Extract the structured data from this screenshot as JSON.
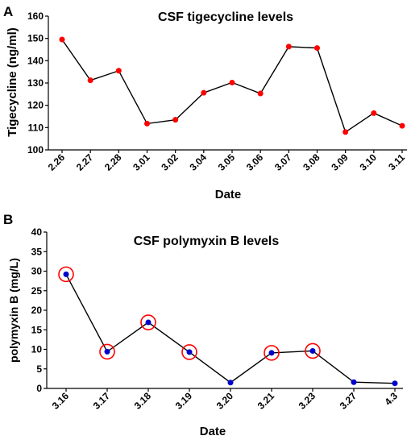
{
  "panels": [
    {
      "letter": "A"
    },
    {
      "letter": "B"
    }
  ],
  "chart_data": [
    {
      "type": "line",
      "title": "CSF tigecycline levels",
      "xlabel": "Date",
      "ylabel": "Tigecycline (ng/ml)",
      "categories": [
        "2.26",
        "2.27",
        "2.28",
        "3.01",
        "3.02",
        "3.04",
        "3.05",
        "3.06",
        "3.07",
        "3.08",
        "3.09",
        "3.10",
        "3.11"
      ],
      "series": [
        {
          "values": [
            149.5,
            131.2,
            135.5,
            111.8,
            113.5,
            125.6,
            130.2,
            125.3,
            146.3,
            145.7,
            108,
            116.5,
            110.8
          ]
        }
      ],
      "ylim": [
        100,
        160
      ],
      "yticks": [
        "100",
        "110",
        "120",
        "130",
        "140",
        "150",
        "160"
      ],
      "marker_color": "#ff0000",
      "line_color": "#000000",
      "grid": false
    },
    {
      "type": "line",
      "title": "CSF polymyxin B levels",
      "xlabel": "Date",
      "ylabel": "polymyxin B (mg/L)",
      "categories": [
        "3.16",
        "3.17",
        "3.18",
        "3.19",
        "3.20",
        "3.21",
        "3.23",
        "3.27",
        "4.3"
      ],
      "series": [
        {
          "values": [
            29.2,
            9.4,
            16.9,
            9.3,
            1.5,
            9.1,
            9.6,
            1.6,
            1.3
          ]
        }
      ],
      "highlighted_points": [
        "3.16",
        "3.17",
        "3.18",
        "3.19",
        "3.21",
        "3.23"
      ],
      "ylim": [
        0,
        40
      ],
      "yticks": [
        "0",
        "5",
        "10",
        "15",
        "20",
        "25",
        "30",
        "35",
        "40"
      ],
      "marker_color": "#0000cc",
      "highlight_color": "#ff0000",
      "line_color": "#000000",
      "grid": false
    }
  ]
}
